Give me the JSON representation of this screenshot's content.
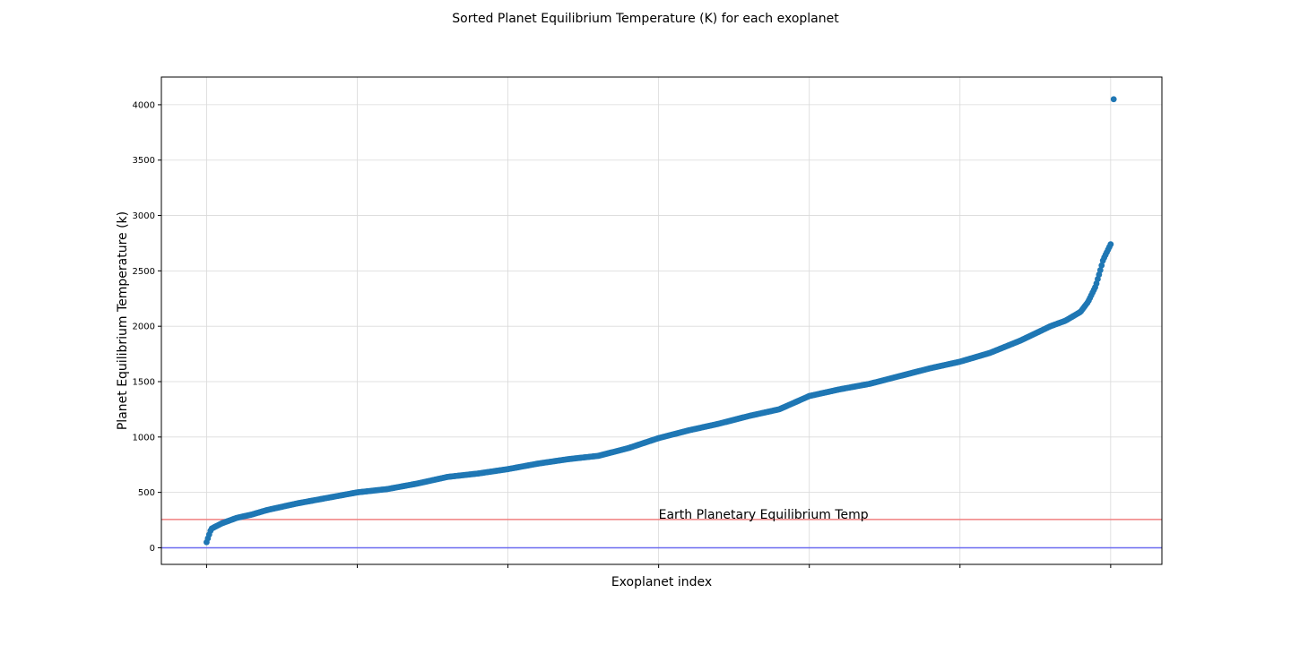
{
  "chart_data": {
    "type": "scatter",
    "title": "Sorted Planet Equilibrium Temperature (K) for each exoplanet",
    "xlabel": "Exoplanet index",
    "ylabel": "Planet Equilibrium Temperature (k)",
    "xlim": [
      -150,
      3170
    ],
    "ylim": [
      -150,
      4250
    ],
    "yticks": [
      0,
      500,
      1000,
      1500,
      2000,
      2500,
      3000,
      3500,
      4000
    ],
    "xticks": [
      0,
      500,
      1000,
      1500,
      2000,
      2500,
      3000
    ],
    "xtick_labels_shown": false,
    "grid": true,
    "marker_color": "#1f77b4",
    "hlines": [
      {
        "y": 255,
        "color": "#f08080"
      },
      {
        "y": 0,
        "color": "#6a6af0"
      }
    ],
    "annotation": {
      "text": "Earth Planetary Equilibrium Temp",
      "x": 1500,
      "y": 255
    },
    "curve_keypoints": [
      [
        0,
        50
      ],
      [
        5,
        90
      ],
      [
        10,
        130
      ],
      [
        15,
        170
      ],
      [
        25,
        185
      ],
      [
        50,
        220
      ],
      [
        100,
        270
      ],
      [
        150,
        300
      ],
      [
        200,
        340
      ],
      [
        250,
        370
      ],
      [
        300,
        400
      ],
      [
        400,
        450
      ],
      [
        500,
        500
      ],
      [
        600,
        530
      ],
      [
        700,
        580
      ],
      [
        800,
        640
      ],
      [
        900,
        670
      ],
      [
        1000,
        710
      ],
      [
        1100,
        760
      ],
      [
        1200,
        800
      ],
      [
        1300,
        830
      ],
      [
        1400,
        900
      ],
      [
        1500,
        990
      ],
      [
        1600,
        1060
      ],
      [
        1700,
        1120
      ],
      [
        1800,
        1190
      ],
      [
        1900,
        1250
      ],
      [
        2000,
        1370
      ],
      [
        2100,
        1430
      ],
      [
        2200,
        1480
      ],
      [
        2300,
        1550
      ],
      [
        2400,
        1620
      ],
      [
        2500,
        1680
      ],
      [
        2600,
        1760
      ],
      [
        2700,
        1870
      ],
      [
        2800,
        2000
      ],
      [
        2850,
        2050
      ],
      [
        2900,
        2130
      ],
      [
        2925,
        2220
      ],
      [
        2950,
        2360
      ],
      [
        2965,
        2500
      ],
      [
        2975,
        2600
      ],
      [
        3000,
        2740
      ]
    ],
    "outlier": [
      3010,
      4050
    ]
  }
}
